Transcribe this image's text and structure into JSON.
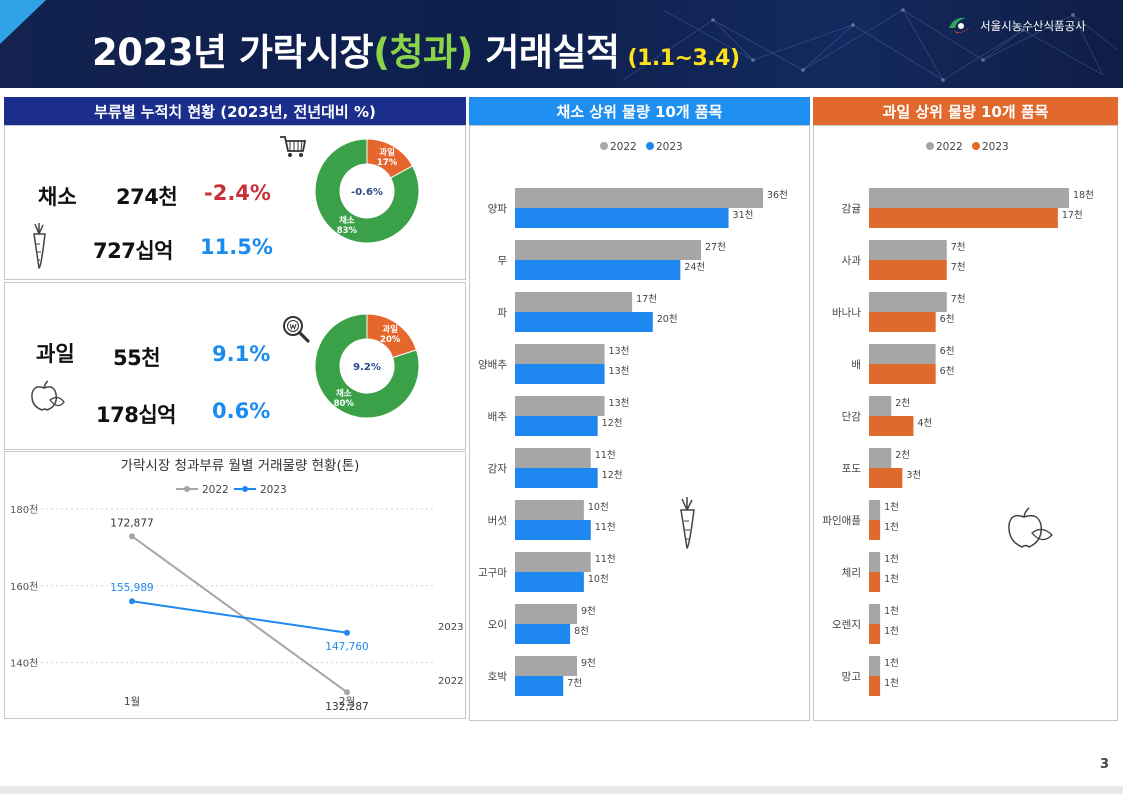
{
  "header": {
    "title_prefix": "2023년 가락시장",
    "title_highlight": "(청과)",
    "title_suffix": "거래실적",
    "period": "(1.1~3.4)",
    "org_name": "서울시농수산식품공사"
  },
  "summary": {
    "title": "부류별 누적치 현황 (2023년, 전년대비 %)",
    "vegetable": {
      "label": "채소",
      "volume": "274천",
      "volume_pct": "-2.4%",
      "amount": "727십억",
      "amount_pct": "11.5%",
      "donut": {
        "center": "-0.6%",
        "slices": [
          {
            "name": "과일",
            "pct": "17%",
            "value": 17
          },
          {
            "name": "채소",
            "pct": "83%",
            "value": 83
          }
        ]
      }
    },
    "fruit": {
      "label": "과일",
      "volume": "55천",
      "volume_pct": "9.1%",
      "amount": "178십억",
      "amount_pct": "0.6%",
      "donut": {
        "center": "9.2%",
        "slices": [
          {
            "name": "과일",
            "pct": "20%",
            "value": 20
          },
          {
            "name": "채소",
            "pct": "80%",
            "value": 80
          }
        ]
      }
    }
  },
  "colors": {
    "gray": "#a6a6a6",
    "blue": "#1e88f0",
    "orange": "#e06a2e",
    "navy": "#1a2f8a",
    "green": "#3aa149",
    "donut_orange": "#e5672e"
  },
  "chart_data": [
    {
      "type": "line",
      "title": "가락시장 청과부류 월별 거래물량 현황(톤)",
      "categories": [
        "1월",
        "2월"
      ],
      "series": [
        {
          "name": "2022",
          "values": [
            172877,
            132287
          ],
          "labels": [
            "172,877",
            "132,287"
          ]
        },
        {
          "name": "2023",
          "values": [
            155989,
            147760
          ],
          "labels": [
            "155,989",
            "147,760"
          ]
        }
      ],
      "ylim": [
        130000,
        180000
      ],
      "yticks": [
        140000,
        160000,
        180000
      ],
      "ytick_labels": [
        "140천",
        "160천",
        "180천"
      ],
      "legend": "top",
      "grid": true
    },
    {
      "type": "bar",
      "orientation": "horizontal",
      "title": "채소 상위 물량 10개 품목",
      "categories": [
        "양파",
        "무",
        "파",
        "양배추",
        "배추",
        "감자",
        "버섯",
        "고구마",
        "오이",
        "호박"
      ],
      "series": [
        {
          "name": "2022",
          "values": [
            36,
            27,
            17,
            13,
            13,
            11,
            10,
            11,
            9,
            9
          ],
          "labels": [
            "36천",
            "27천",
            "17천",
            "13천",
            "13천",
            "11천",
            "10천",
            "11천",
            "9천",
            "9천"
          ]
        },
        {
          "name": "2023",
          "values": [
            31,
            24,
            20,
            13,
            12,
            12,
            11,
            10,
            8,
            7
          ],
          "labels": [
            "31천",
            "24천",
            "20천",
            "13천",
            "12천",
            "12천",
            "11천",
            "10천",
            "8천",
            "7천"
          ]
        }
      ],
      "year_labels": [
        "2023",
        "2022"
      ],
      "legend": "top"
    },
    {
      "type": "bar",
      "orientation": "horizontal",
      "title": "과일 상위 물량 10개 품목",
      "categories": [
        "감귤",
        "사과",
        "바나나",
        "배",
        "단감",
        "포도",
        "파인애플",
        "체리",
        "오렌지",
        "망고"
      ],
      "series": [
        {
          "name": "2022",
          "values": [
            18,
            7,
            7,
            6,
            2,
            2,
            1,
            1,
            1,
            1
          ],
          "labels": [
            "18천",
            "7천",
            "7천",
            "6천",
            "2천",
            "2천",
            "1천",
            "1천",
            "1천",
            "1천"
          ]
        },
        {
          "name": "2023",
          "values": [
            17,
            7,
            6,
            6,
            4,
            3,
            1,
            1,
            1,
            1
          ],
          "labels": [
            "17천",
            "7천",
            "6천",
            "6천",
            "4천",
            "3천",
            "1천",
            "1천",
            "1천",
            "1천"
          ]
        }
      ],
      "legend": "top"
    }
  ],
  "page_number": "3"
}
